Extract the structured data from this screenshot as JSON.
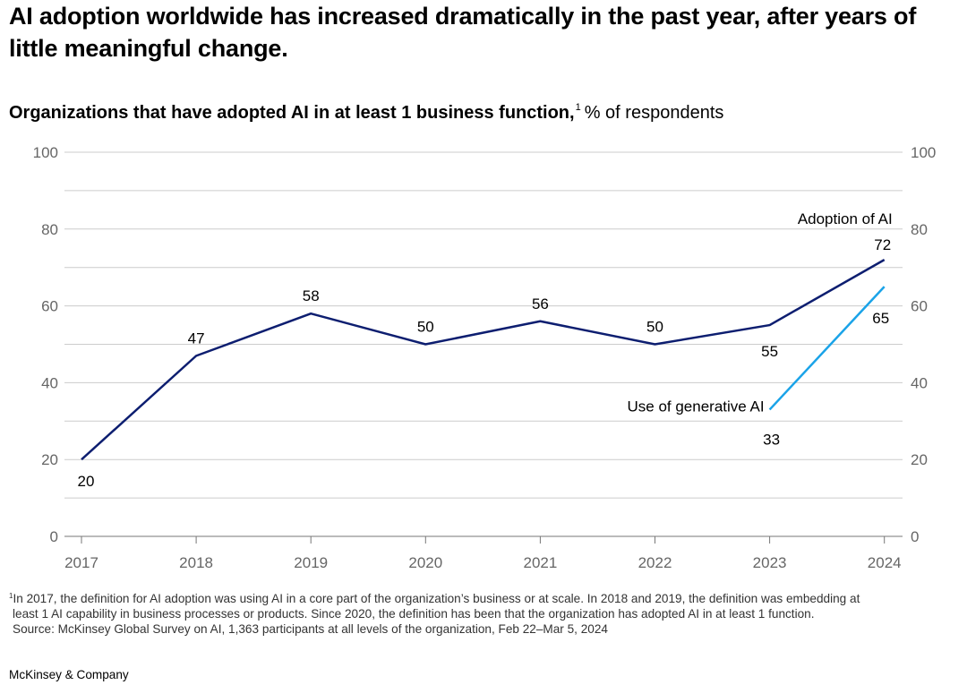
{
  "headline": "AI adoption worldwide has increased dramatically in the past year, after years of little meaningful change.",
  "subtitle": {
    "bold": "Organizations that have adopted AI in at least 1 business function,",
    "footnote_marker": "1",
    "unit": "% of respondents"
  },
  "chart_data": {
    "type": "line",
    "x": [
      "2017",
      "2018",
      "2019",
      "2020",
      "2021",
      "2022",
      "2023",
      "2024"
    ],
    "ylim": [
      0,
      100
    ],
    "yticks": [
      0,
      20,
      40,
      60,
      80,
      100
    ],
    "grid": true,
    "series": [
      {
        "name": "Adoption of AI",
        "color": "#0d1e70",
        "x": [
          "2017",
          "2018",
          "2019",
          "2020",
          "2021",
          "2022",
          "2023",
          "2024"
        ],
        "values": [
          20,
          47,
          58,
          50,
          56,
          50,
          55,
          72
        ]
      },
      {
        "name": "Use of generative AI",
        "color": "#1aa3e8",
        "x": [
          "2023",
          "2024"
        ],
        "values": [
          33,
          65
        ]
      }
    ]
  },
  "footnote": {
    "marker": "1",
    "line1": "In 2017, the definition for AI adoption was using AI in a core part of the organization’s business or at scale. In 2018 and 2019, the definition was embedding at",
    "line2": "least 1 AI capability in business processes or products. Since 2020, the definition has been that the organization has adopted AI in at least 1 function.",
    "source": "Source: McKinsey Global Survey on AI, 1,363 participants at all levels of the organization, Feb 22–Mar 5, 2024"
  },
  "brand": "McKinsey & Company"
}
